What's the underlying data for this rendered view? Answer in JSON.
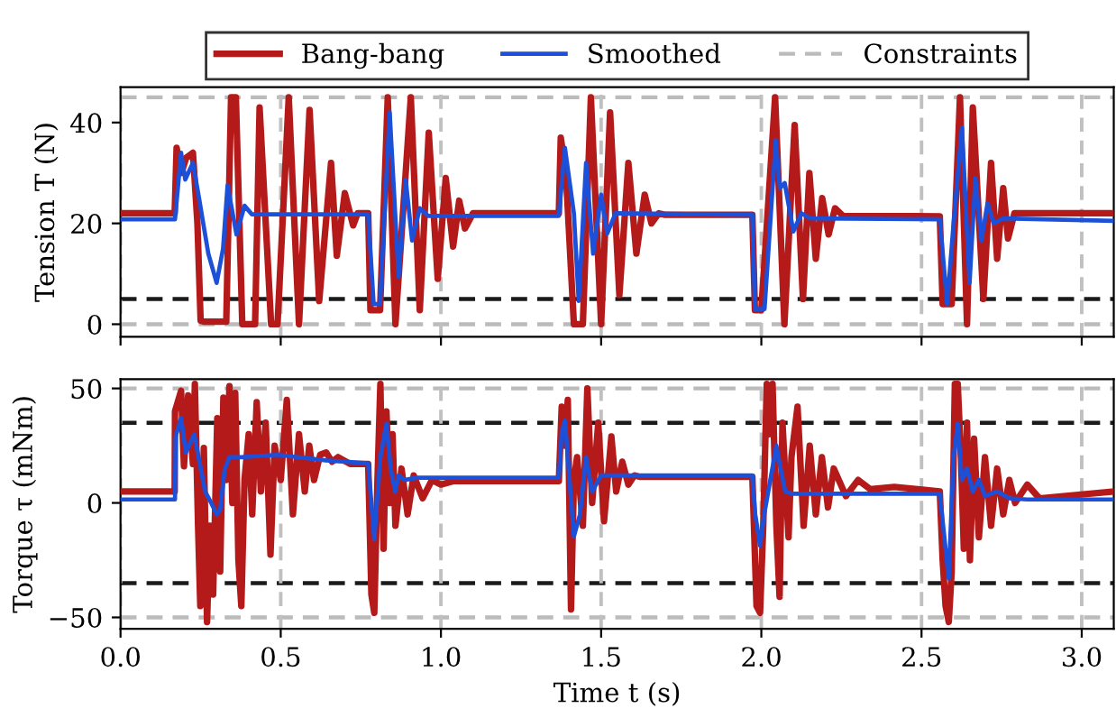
{
  "chart_data": [
    {
      "type": "line",
      "ylabel": "Tension T (N)",
      "xlim": [
        0,
        3.1
      ],
      "xticks": [
        {
          "value": 0,
          "label": null
        },
        {
          "value": 0.5,
          "label": null
        },
        {
          "value": 1,
          "label": null
        },
        {
          "value": 1.5,
          "label": null
        },
        {
          "value": 2,
          "label": null
        },
        {
          "value": 2.5,
          "label": null
        },
        {
          "value": 3,
          "label": null
        }
      ],
      "ylim": [
        -2.5,
        47
      ],
      "yticks": [
        0,
        20,
        40
      ],
      "tick_labels": "y",
      "grid": "x",
      "legend": "top",
      "line_style": "solid",
      "marker": "none",
      "series": [
        {
          "name": "Bang-bang",
          "color": "#b51a1a",
          "x": [
            0,
            0.169,
            0.175,
            0.19,
            0.205,
            0.226,
            0.24,
            0.25,
            0.26,
            0.33,
            0.345,
            0.36,
            0.38,
            0.42,
            0.434,
            0.47,
            0.49,
            0.525,
            0.557,
            0.59,
            0.62,
            0.657,
            0.675,
            0.7,
            0.726,
            0.74,
            0.773,
            0.78,
            0.81,
            0.834,
            0.858,
            0.906,
            0.934,
            0.962,
            0.99,
            1.015,
            1.038,
            1.057,
            1.075,
            1.1,
            1.368,
            1.374,
            1.39,
            1.415,
            1.443,
            1.468,
            1.5,
            1.528,
            1.557,
            1.585,
            1.61,
            1.636,
            1.657,
            1.68,
            1.7,
            1.972,
            1.98,
            2.0,
            2.043,
            2.072,
            2.104,
            2.13,
            2.15,
            2.17,
            2.19,
            2.21,
            2.23,
            2.255,
            2.557,
            2.566,
            2.594,
            2.62,
            2.642,
            2.66,
            2.693,
            2.717,
            2.736,
            2.755,
            2.77,
            2.79,
            3.1
          ],
          "values": [
            22,
            22,
            35,
            30,
            33,
            34,
            20,
            0.7,
            0.5,
            0.5,
            45,
            45,
            0,
            0,
            43,
            0,
            0,
            45,
            0,
            42.5,
            4.6,
            32,
            13.6,
            26,
            19.6,
            22,
            22,
            2.8,
            2.8,
            45,
            0,
            45,
            2.8,
            38,
            9,
            29,
            15.4,
            24.5,
            19,
            22,
            22,
            37,
            30,
            0,
            0,
            45,
            0,
            42,
            5.8,
            32,
            14,
            25.7,
            20,
            22,
            21.7,
            21.7,
            2.8,
            2.8,
            45,
            0,
            39.5,
            5,
            30,
            13,
            25,
            17.8,
            23,
            21.5,
            21.4,
            4,
            4,
            45,
            0,
            43,
            5,
            32,
            13,
            27,
            17,
            22,
            22
          ]
        },
        {
          "name": "Smoothed",
          "color": "#1c50d8",
          "x": [
            0,
            0.17,
            0.189,
            0.202,
            0.226,
            0.245,
            0.274,
            0.3,
            0.32,
            0.334,
            0.362,
            0.387,
            0.41,
            0.773,
            0.79,
            0.81,
            0.84,
            0.868,
            0.89,
            0.91,
            0.934,
            0.96,
            1.368,
            1.387,
            1.415,
            1.43,
            1.453,
            1.475,
            1.5,
            1.519,
            1.545,
            1.972,
            1.98,
            2.01,
            2.045,
            2.058,
            2.073,
            2.1,
            2.125,
            2.152,
            2.557,
            2.58,
            2.6,
            2.626,
            2.65,
            2.668,
            2.687,
            2.706,
            2.725,
            2.755,
            3.1
          ],
          "values": [
            20.8,
            20.8,
            34,
            28.7,
            32,
            25,
            14,
            8.2,
            15,
            27.5,
            17.8,
            23.5,
            21.8,
            21.8,
            4,
            4,
            42,
            9.4,
            28.7,
            16.6,
            23,
            21.5,
            21.5,
            35,
            22,
            4.6,
            32,
            14,
            25.7,
            18,
            22,
            21.7,
            3,
            3,
            36.5,
            27,
            28,
            18.4,
            22,
            21,
            20.8,
            4,
            20,
            39,
            8.2,
            29,
            16.6,
            24,
            20,
            21,
            20.5
          ]
        }
      ],
      "ref_lines": [
        {
          "axis": "y",
          "value": 45,
          "label": "Constraints",
          "color": "#bbbbbb",
          "line_style": "dashed"
        },
        {
          "axis": "y",
          "value": 0,
          "color": "#bbbbbb",
          "line_style": "dashed"
        },
        {
          "axis": "y",
          "value": 5,
          "color": "#1a1a1a",
          "line_style": "dashed"
        }
      ]
    },
    {
      "type": "line",
      "ylabel": "Torque τ (mNm)",
      "xlabel": "Time t (s)",
      "xlim": [
        0,
        3.1
      ],
      "xticks": [
        {
          "value": 0,
          "label": "0.0"
        },
        0.5,
        {
          "value": 1,
          "label": "1.0"
        },
        1.5,
        {
          "value": 2,
          "label": "2.0"
        },
        2.5,
        {
          "value": 3,
          "label": "3.0"
        }
      ],
      "ylim": [
        -55,
        54
      ],
      "yticks": [
        -50,
        0,
        50
      ],
      "grid": "x",
      "line_style": "solid",
      "marker": "none",
      "series": [
        {
          "name": "Bang-bang",
          "color": "#b51a1a",
          "x": [
            0,
            0.169,
            0.17,
            0.189,
            0.198,
            0.211,
            0.226,
            0.232,
            0.242,
            0.249,
            0.26,
            0.27,
            0.279,
            0.289,
            0.302,
            0.311,
            0.321,
            0.33,
            0.34,
            0.349,
            0.358,
            0.368,
            0.377,
            0.387,
            0.4,
            0.411,
            0.425,
            0.438,
            0.453,
            0.468,
            0.481,
            0.5,
            0.519,
            0.538,
            0.557,
            0.575,
            0.589,
            0.604,
            0.623,
            0.642,
            0.66,
            0.679,
            0.717,
            0.773,
            0.783,
            0.792,
            0.802,
            0.811,
            0.821,
            0.83,
            0.84,
            0.849,
            0.858,
            0.877,
            0.896,
            0.915,
            0.943,
            0.972,
            1.0,
            1.038,
            1.368,
            1.377,
            1.387,
            1.396,
            1.406,
            1.415,
            1.425,
            1.443,
            1.457,
            1.472,
            1.491,
            1.509,
            1.532,
            1.547,
            1.566,
            1.585,
            1.604,
            1.62,
            1.972,
            1.977,
            1.985,
            1.996,
            2.006,
            2.017,
            2.024,
            2.035,
            2.047,
            2.057,
            2.066,
            2.085,
            2.094,
            2.113,
            2.132,
            2.151,
            2.17,
            2.189,
            2.208,
            2.226,
            2.264,
            2.302,
            2.34,
            2.415,
            2.557,
            2.566,
            2.575,
            2.585,
            2.594,
            2.604,
            2.613,
            2.623,
            2.632,
            2.642,
            2.651,
            2.664,
            2.679,
            2.698,
            2.717,
            2.736,
            2.755,
            2.774,
            2.792,
            2.83,
            2.868,
            3.1
          ],
          "values": [
            5,
            5,
            40,
            49,
            16,
            47,
            17,
            52,
            -10,
            -45,
            24,
            -52,
            -10,
            -40,
            37,
            -30,
            46,
            10,
            51,
            0,
            48,
            -25,
            -45,
            10,
            30,
            -5,
            44,
            5,
            35,
            -22.6,
            25,
            10,
            45,
            -5,
            30,
            5,
            25,
            10,
            21,
            22,
            18,
            20,
            17,
            17,
            -40,
            -48,
            10,
            52,
            -20,
            40,
            0,
            30,
            -10,
            15,
            -5,
            12,
            2,
            10,
            8,
            9.5,
            9.5,
            42,
            25,
            45,
            -46.5,
            10,
            20,
            -10,
            50,
            0,
            35,
            -8,
            29,
            5,
            18,
            8,
            12,
            11.4,
            11.4,
            -10,
            -45,
            -48,
            -10,
            52,
            30,
            52,
            -10,
            -41,
            35,
            -15,
            20,
            42,
            -10,
            25,
            -5,
            20,
            -2,
            15,
            3,
            10,
            6,
            7,
            5,
            -25,
            -45,
            -52,
            -30,
            52,
            52,
            20,
            -20,
            35,
            -25,
            28,
            -15,
            20,
            -10,
            15,
            -5,
            10,
            0,
            8,
            2,
            5
          ]
        },
        {
          "name": "Smoothed",
          "color": "#1c50d8",
          "x": [
            0,
            0.17,
            0.172,
            0.189,
            0.204,
            0.23,
            0.264,
            0.283,
            0.3,
            0.311,
            0.325,
            0.34,
            0.377,
            0.49,
            0.64,
            0.773,
            0.783,
            0.792,
            0.811,
            0.83,
            0.843,
            0.857,
            0.868,
            0.887,
            0.925,
            1.368,
            1.377,
            1.387,
            1.396,
            1.415,
            1.434,
            1.453,
            1.472,
            1.5,
            1.509,
            1.972,
            1.981,
            1.996,
            2.009,
            2.028,
            2.047,
            2.06,
            2.075,
            2.094,
            2.113,
            2.557,
            2.575,
            2.585,
            2.6,
            2.613,
            2.626,
            2.642,
            2.66,
            2.679,
            2.698,
            2.736,
            2.774,
            2.83,
            3.1
          ],
          "values": [
            1.5,
            1.5,
            29,
            37,
            22,
            30,
            5,
            0,
            -5,
            -3,
            14.6,
            20,
            20,
            21,
            18.6,
            17.3,
            0,
            -16,
            20,
            34.6,
            15,
            5,
            12,
            10,
            11,
            11,
            30.6,
            36,
            20,
            -14.6,
            -5,
            20,
            5,
            12,
            12,
            12,
            -5,
            -18.6,
            -5,
            10,
            25,
            15,
            5,
            4,
            4,
            4,
            -20,
            -33,
            20,
            34.6,
            10,
            15,
            5,
            10,
            3,
            5,
            2,
            1.5,
            1.5
          ]
        }
      ],
      "ref_lines": [
        {
          "axis": "y",
          "value": 50,
          "color": "#bbbbbb",
          "line_style": "dashed"
        },
        {
          "axis": "y",
          "value": -50,
          "color": "#bbbbbb",
          "line_style": "dashed"
        },
        {
          "axis": "y",
          "value": 35,
          "color": "#1a1a1a",
          "line_style": "dashed"
        },
        {
          "axis": "y",
          "value": -35,
          "color": "#1a1a1a",
          "line_style": "dashed"
        }
      ]
    }
  ]
}
